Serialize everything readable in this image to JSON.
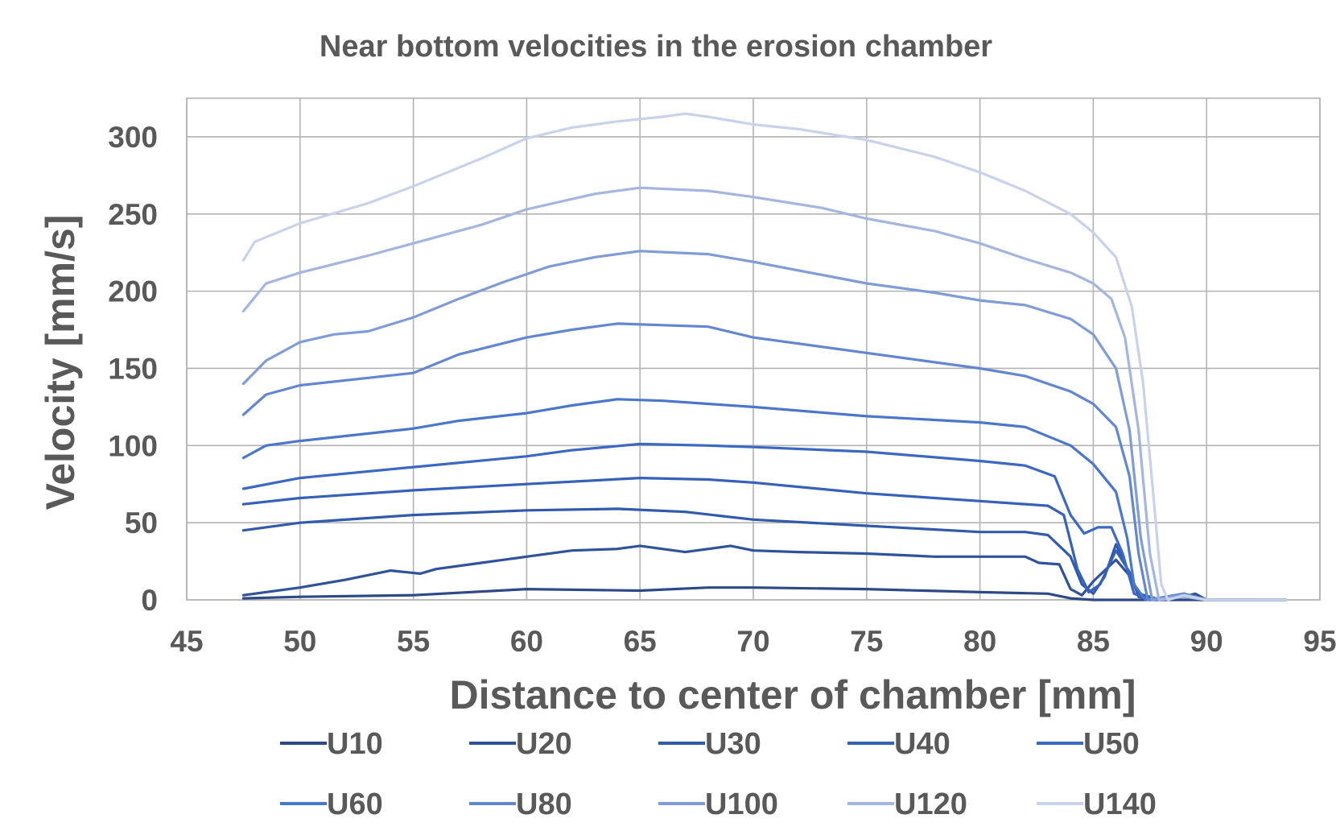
{
  "chart_data": {
    "type": "line",
    "title": "Near bottom velocities in the erosion chamber",
    "xlabel": "Distance to center of chamber [mm]",
    "ylabel": "Velocity [mm/s]",
    "xlim": [
      45,
      95
    ],
    "ylim": [
      0,
      325
    ],
    "xticks": [
      45,
      50,
      55,
      60,
      65,
      70,
      75,
      80,
      85,
      90,
      95
    ],
    "yticks": [
      0,
      50,
      100,
      150,
      200,
      250,
      300
    ],
    "grid": true,
    "legend_position": "bottom",
    "series": [
      {
        "name": "U10",
        "color": "#2e4a86",
        "points": [
          [
            47.5,
            1
          ],
          [
            50,
            2
          ],
          [
            55,
            3
          ],
          [
            60,
            7
          ],
          [
            65,
            6
          ],
          [
            68,
            8
          ],
          [
            70,
            8
          ],
          [
            75,
            7
          ],
          [
            80,
            5
          ],
          [
            83,
            4
          ],
          [
            84,
            1
          ],
          [
            85,
            0
          ],
          [
            90,
            0
          ],
          [
            93.5,
            0
          ]
        ]
      },
      {
        "name": "U20",
        "color": "#2f539b",
        "points": [
          [
            47.5,
            3
          ],
          [
            50,
            8
          ],
          [
            52,
            13
          ],
          [
            54,
            19
          ],
          [
            55.3,
            17
          ],
          [
            56,
            20
          ],
          [
            58,
            24
          ],
          [
            60,
            28
          ],
          [
            62,
            32
          ],
          [
            64,
            33
          ],
          [
            65,
            35
          ],
          [
            67,
            31
          ],
          [
            69,
            35
          ],
          [
            70,
            32
          ],
          [
            72,
            31
          ],
          [
            75,
            30
          ],
          [
            78,
            28
          ],
          [
            80,
            28
          ],
          [
            82,
            28
          ],
          [
            82.6,
            24
          ],
          [
            83.5,
            23
          ],
          [
            84,
            7
          ],
          [
            84.5,
            3
          ],
          [
            85,
            12
          ],
          [
            86,
            26
          ],
          [
            86.7,
            14
          ],
          [
            87,
            2
          ],
          [
            88,
            0
          ],
          [
            89,
            2
          ],
          [
            89.5,
            4
          ],
          [
            90,
            0
          ],
          [
            93.5,
            0
          ]
        ]
      },
      {
        "name": "U30",
        "color": "#315aab",
        "points": [
          [
            47.5,
            45
          ],
          [
            50,
            50
          ],
          [
            55,
            55
          ],
          [
            60,
            58
          ],
          [
            64,
            59
          ],
          [
            67,
            57
          ],
          [
            70,
            52
          ],
          [
            75,
            48
          ],
          [
            80,
            44
          ],
          [
            82,
            44
          ],
          [
            83,
            42
          ],
          [
            84,
            28
          ],
          [
            84.5,
            10
          ],
          [
            85,
            4
          ],
          [
            85.5,
            15
          ],
          [
            86,
            36
          ],
          [
            86.5,
            20
          ],
          [
            87,
            4
          ],
          [
            88,
            0
          ],
          [
            89,
            2
          ],
          [
            90,
            0
          ],
          [
            93.5,
            0
          ]
        ]
      },
      {
        "name": "U40",
        "color": "#3561b8",
        "points": [
          [
            47.5,
            62
          ],
          [
            50,
            66
          ],
          [
            55,
            71
          ],
          [
            60,
            75
          ],
          [
            65,
            79
          ],
          [
            68,
            78
          ],
          [
            70,
            76
          ],
          [
            75,
            69
          ],
          [
            80,
            64
          ],
          [
            83,
            61
          ],
          [
            83.7,
            55
          ],
          [
            84.3,
            20
          ],
          [
            84.8,
            5
          ],
          [
            85.3,
            10
          ],
          [
            86,
            32
          ],
          [
            86.6,
            18
          ],
          [
            87,
            3
          ],
          [
            88,
            0
          ],
          [
            89,
            4
          ],
          [
            90,
            0
          ],
          [
            93.5,
            0
          ]
        ]
      },
      {
        "name": "U50",
        "color": "#3a68c3",
        "points": [
          [
            47.5,
            72
          ],
          [
            50,
            79
          ],
          [
            55,
            86
          ],
          [
            60,
            93
          ],
          [
            62,
            97
          ],
          [
            65,
            101
          ],
          [
            68,
            100
          ],
          [
            70,
            99
          ],
          [
            75,
            96
          ],
          [
            80,
            90
          ],
          [
            82,
            87
          ],
          [
            83.3,
            80
          ],
          [
            84,
            55
          ],
          [
            84.6,
            43
          ],
          [
            85.2,
            47
          ],
          [
            85.8,
            47
          ],
          [
            86.3,
            30
          ],
          [
            86.8,
            4
          ],
          [
            87.5,
            0
          ],
          [
            89,
            4
          ],
          [
            90,
            0
          ],
          [
            93.5,
            0
          ]
        ]
      },
      {
        "name": "U60",
        "color": "#4a76cc",
        "points": [
          [
            47.5,
            92
          ],
          [
            48.5,
            100
          ],
          [
            50,
            103
          ],
          [
            55,
            111
          ],
          [
            57,
            116
          ],
          [
            60,
            121
          ],
          [
            62,
            126
          ],
          [
            64,
            130
          ],
          [
            66,
            129
          ],
          [
            70,
            125
          ],
          [
            75,
            119
          ],
          [
            80,
            115
          ],
          [
            82,
            112
          ],
          [
            84,
            100
          ],
          [
            85,
            88
          ],
          [
            86,
            70
          ],
          [
            86.5,
            40
          ],
          [
            86.8,
            10
          ],
          [
            87.3,
            0
          ],
          [
            89,
            3
          ],
          [
            90,
            0
          ],
          [
            93.5,
            0
          ]
        ]
      },
      {
        "name": "U80",
        "color": "#6287d1",
        "points": [
          [
            47.5,
            120
          ],
          [
            48.5,
            133
          ],
          [
            50,
            139
          ],
          [
            55,
            147
          ],
          [
            57,
            159
          ],
          [
            60,
            170
          ],
          [
            62,
            175
          ],
          [
            64,
            179
          ],
          [
            66,
            178
          ],
          [
            68,
            177
          ],
          [
            70,
            170
          ],
          [
            75,
            160
          ],
          [
            80,
            150
          ],
          [
            82,
            145
          ],
          [
            84,
            135
          ],
          [
            85,
            127
          ],
          [
            86,
            112
          ],
          [
            86.6,
            80
          ],
          [
            87,
            30
          ],
          [
            87.4,
            0
          ],
          [
            89,
            4
          ],
          [
            90,
            0
          ],
          [
            93.5,
            0
          ]
        ]
      },
      {
        "name": "U100",
        "color": "#7f9cd7",
        "points": [
          [
            47.5,
            140
          ],
          [
            48.5,
            155
          ],
          [
            50,
            167
          ],
          [
            51.5,
            172
          ],
          [
            53,
            174
          ],
          [
            55,
            183
          ],
          [
            57,
            195
          ],
          [
            59,
            206
          ],
          [
            61,
            216
          ],
          [
            63,
            222
          ],
          [
            65,
            226
          ],
          [
            68,
            224
          ],
          [
            70,
            219
          ],
          [
            75,
            205
          ],
          [
            78,
            199
          ],
          [
            80,
            194
          ],
          [
            82,
            191
          ],
          [
            84,
            182
          ],
          [
            85,
            172
          ],
          [
            86,
            150
          ],
          [
            86.6,
            110
          ],
          [
            87.1,
            40
          ],
          [
            87.6,
            0
          ],
          [
            89,
            3
          ],
          [
            90,
            0
          ],
          [
            93.5,
            0
          ]
        ]
      },
      {
        "name": "U120",
        "color": "#a4b5df",
        "points": [
          [
            47.5,
            187
          ],
          [
            48.5,
            205
          ],
          [
            50,
            212
          ],
          [
            53,
            223
          ],
          [
            55,
            231
          ],
          [
            58,
            243
          ],
          [
            60,
            253
          ],
          [
            63,
            263
          ],
          [
            65,
            267
          ],
          [
            68,
            265
          ],
          [
            70,
            261
          ],
          [
            73,
            254
          ],
          [
            75,
            247
          ],
          [
            78,
            239
          ],
          [
            80,
            231
          ],
          [
            82,
            221
          ],
          [
            84,
            212
          ],
          [
            85,
            205
          ],
          [
            85.8,
            195
          ],
          [
            86.4,
            170
          ],
          [
            87,
            110
          ],
          [
            87.5,
            30
          ],
          [
            87.9,
            0
          ],
          [
            89,
            2
          ],
          [
            90,
            0
          ],
          [
            93.5,
            0
          ]
        ]
      },
      {
        "name": "U140",
        "color": "#c8d2ea",
        "points": [
          [
            47.5,
            220
          ],
          [
            48,
            232
          ],
          [
            50,
            244
          ],
          [
            53,
            257
          ],
          [
            55,
            268
          ],
          [
            58,
            286
          ],
          [
            60,
            299
          ],
          [
            62,
            306
          ],
          [
            64,
            310
          ],
          [
            66,
            313
          ],
          [
            67,
            315
          ],
          [
            68,
            313
          ],
          [
            70,
            308
          ],
          [
            72,
            305
          ],
          [
            75,
            298
          ],
          [
            78,
            287
          ],
          [
            80,
            277
          ],
          [
            82,
            265
          ],
          [
            84,
            250
          ],
          [
            85,
            238
          ],
          [
            86,
            222
          ],
          [
            86.7,
            190
          ],
          [
            87.2,
            140
          ],
          [
            87.7,
            60
          ],
          [
            88,
            10
          ],
          [
            88.3,
            0
          ],
          [
            89,
            3
          ],
          [
            90,
            0
          ],
          [
            93.5,
            0
          ]
        ]
      }
    ]
  }
}
